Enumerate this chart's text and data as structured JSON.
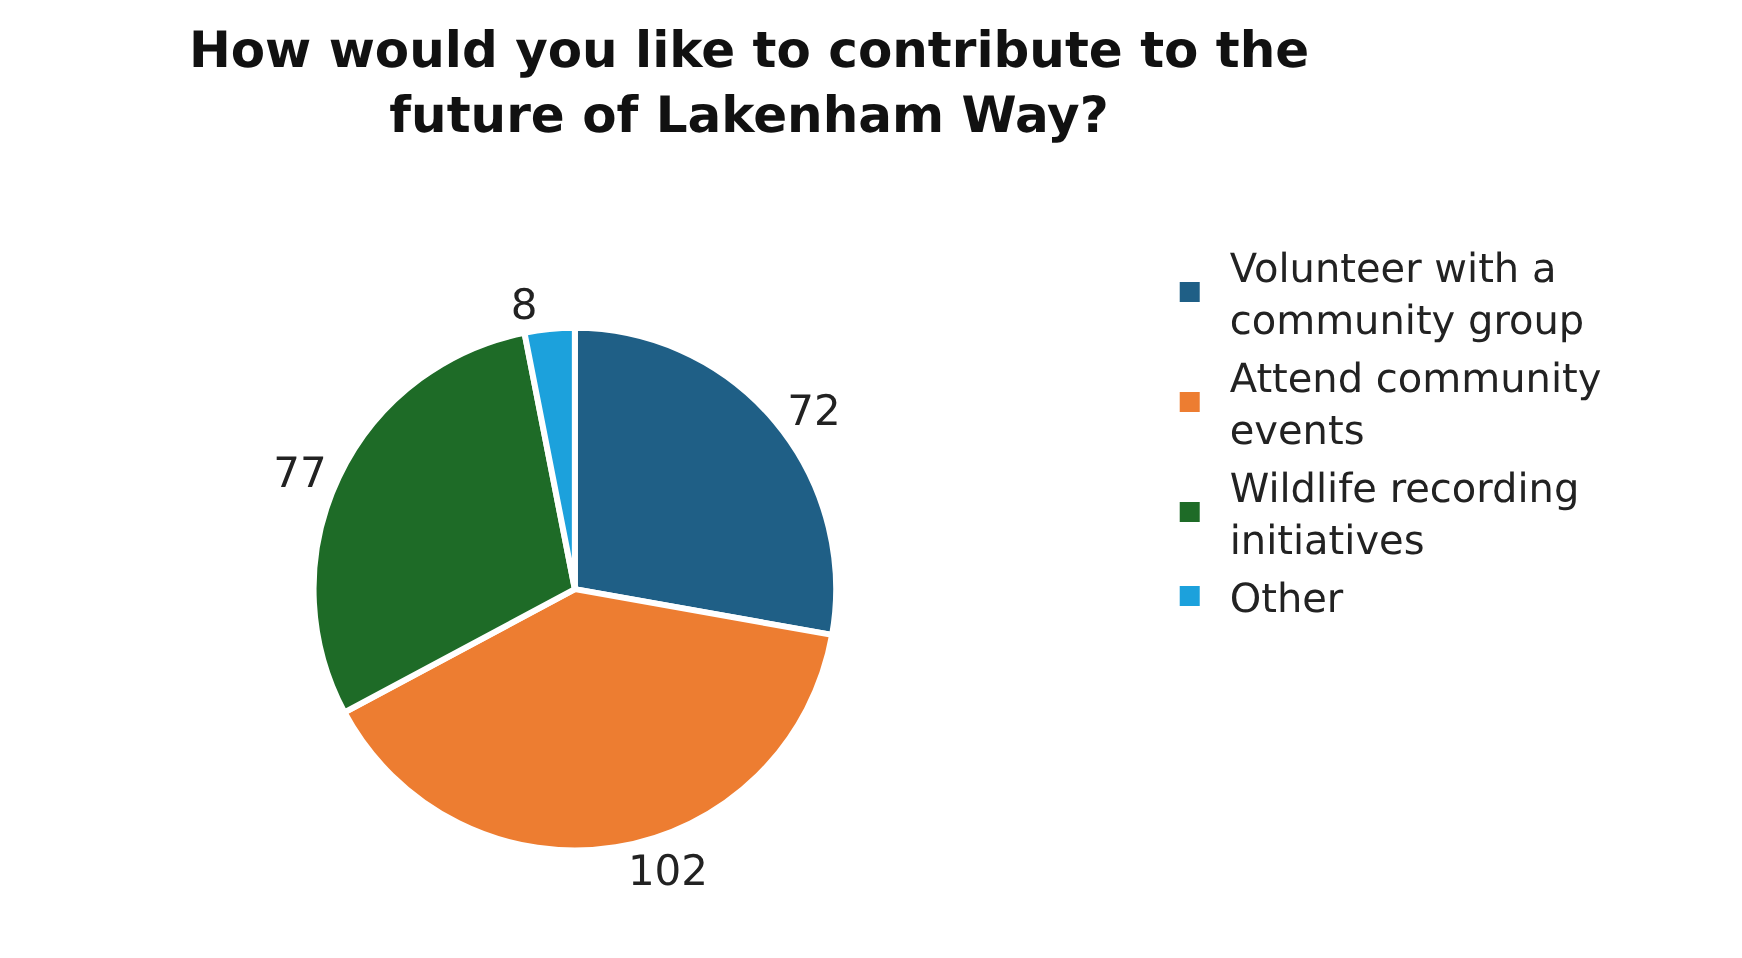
{
  "chart_data": {
    "type": "pie",
    "title": "How would you like to contribute to the future of Lakenham Way?",
    "categories": [
      "Volunteer with a community group",
      "Attend community events",
      "Wildlife recording initiatives",
      "Other"
    ],
    "values": [
      72,
      102,
      77,
      8
    ],
    "colors": [
      "#1f5f86",
      "#ed7d31",
      "#1e6b27",
      "#1ca1dc"
    ],
    "data_labels": true,
    "legend": "right"
  }
}
